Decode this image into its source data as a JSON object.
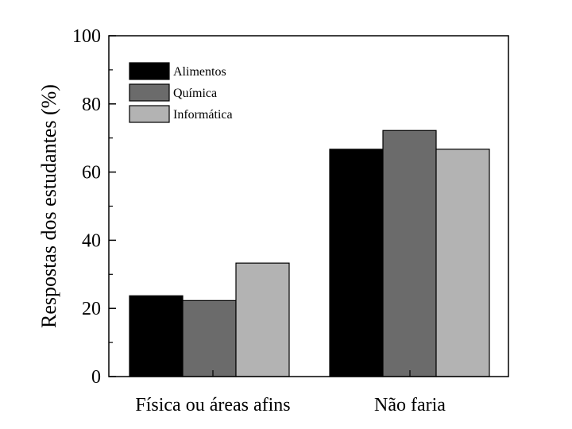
{
  "chart_data": {
    "type": "bar",
    "ylabel": "Respostas dos estudantes (%)",
    "xlabel": "",
    "ylim": [
      0,
      100
    ],
    "yticks": [
      0,
      20,
      40,
      60,
      80,
      100
    ],
    "categories": [
      "Física ou áreas afins",
      "Não faria"
    ],
    "series": [
      {
        "name": "Alimentos",
        "color": "#000000",
        "values": [
          23.7,
          66.7
        ]
      },
      {
        "name": "Química",
        "color": "#6b6b6b",
        "values": [
          22.3,
          72.2
        ]
      },
      {
        "name": "Informática",
        "color": "#b3b3b3",
        "values": [
          33.3,
          66.7
        ]
      }
    ],
    "legend": "top-left",
    "grid": false
  }
}
